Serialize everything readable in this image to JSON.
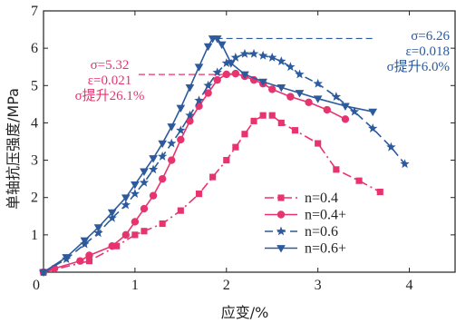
{
  "chart_data": {
    "type": "line",
    "xlabel": "应变/%",
    "ylabel": "单轴抗压强度/MPa",
    "xlim": [
      0,
      4.5
    ],
    "ylim": [
      0,
      7
    ],
    "x_ticks": [
      "0",
      "1",
      "2",
      "3",
      "4"
    ],
    "y_ticks": [
      "0",
      "1",
      "2",
      "3",
      "4",
      "5",
      "6",
      "7"
    ],
    "grid": false,
    "legend_position": "center-right",
    "series": [
      {
        "name": "n=0.4",
        "color": "#e8346e",
        "line_style": "dashdot",
        "marker": "square",
        "x": [
          0.0,
          0.5,
          0.8,
          1.0,
          1.1,
          1.3,
          1.5,
          1.7,
          1.85,
          2.0,
          2.1,
          2.2,
          2.3,
          2.4,
          2.5,
          2.6,
          2.75,
          3.0,
          3.2,
          3.45,
          3.68
        ],
        "y": [
          0.0,
          0.3,
          0.7,
          1.0,
          1.1,
          1.3,
          1.65,
          2.1,
          2.55,
          3.0,
          3.35,
          3.7,
          4.05,
          4.2,
          4.2,
          4.0,
          3.8,
          3.45,
          2.75,
          2.45,
          2.15
        ]
      },
      {
        "name": "n=0.4+",
        "color": "#e8346e",
        "line_style": "solid",
        "marker": "circle",
        "x": [
          0.0,
          0.12,
          0.4,
          0.5,
          0.75,
          0.9,
          1.0,
          1.1,
          1.2,
          1.3,
          1.4,
          1.5,
          1.6,
          1.7,
          1.8,
          1.9,
          2.0,
          2.1,
          2.2,
          2.3,
          2.4,
          2.5,
          2.7,
          2.9,
          3.1,
          3.3
        ],
        "y": [
          0.0,
          0.1,
          0.3,
          0.45,
          0.7,
          1.0,
          1.35,
          1.7,
          2.05,
          2.5,
          3.0,
          3.55,
          4.05,
          4.45,
          4.8,
          5.15,
          5.3,
          5.32,
          5.25,
          5.15,
          5.05,
          4.9,
          4.7,
          4.55,
          4.35,
          4.1
        ]
      },
      {
        "name": "n=0.6",
        "color": "#2c5a9c",
        "line_style": "dashed",
        "marker": "star",
        "x": [
          0.0,
          0.25,
          0.45,
          0.6,
          0.75,
          0.9,
          1.0,
          1.1,
          1.2,
          1.3,
          1.4,
          1.5,
          1.6,
          1.7,
          1.8,
          1.9,
          2.0,
          2.1,
          2.2,
          2.3,
          2.4,
          2.5,
          2.6,
          2.7,
          2.8,
          3.0,
          3.2,
          3.4,
          3.6,
          3.8,
          3.95
        ],
        "y": [
          0.0,
          0.35,
          0.75,
          1.05,
          1.45,
          1.8,
          2.1,
          2.4,
          2.75,
          3.1,
          3.45,
          3.8,
          4.2,
          4.6,
          5.0,
          5.35,
          5.6,
          5.75,
          5.85,
          5.85,
          5.8,
          5.75,
          5.65,
          5.5,
          5.3,
          5.05,
          4.7,
          4.3,
          3.85,
          3.35,
          2.9
        ]
      },
      {
        "name": "n=0.6+",
        "color": "#2c5a9c",
        "line_style": "solid",
        "marker": "triangle-down",
        "x": [
          0.0,
          0.25,
          0.45,
          0.6,
          0.75,
          0.9,
          1.0,
          1.1,
          1.2,
          1.3,
          1.4,
          1.5,
          1.6,
          1.7,
          1.8,
          1.85,
          1.9,
          1.95,
          2.05,
          2.2,
          2.4,
          2.6,
          2.8,
          3.0,
          3.3,
          3.6
        ],
        "y": [
          0.0,
          0.4,
          0.85,
          1.2,
          1.6,
          2.0,
          2.35,
          2.7,
          3.05,
          3.45,
          3.9,
          4.4,
          4.95,
          5.5,
          6.05,
          6.26,
          6.26,
          6.1,
          5.6,
          5.3,
          5.1,
          4.95,
          4.8,
          4.65,
          4.45,
          4.3
        ]
      }
    ],
    "annotations": [
      {
        "lines": [
          "σ=5.32",
          "ε=0.021",
          "σ提升26.1%"
        ],
        "color": "#e8346e",
        "ref_x": 2.1,
        "ref_y": 5.32
      },
      {
        "lines": [
          "σ=6.26",
          "ε=0.018",
          "σ提升6.0%"
        ],
        "color": "#2c5a9c",
        "ref_x": 1.85,
        "ref_y": 6.26
      }
    ]
  }
}
